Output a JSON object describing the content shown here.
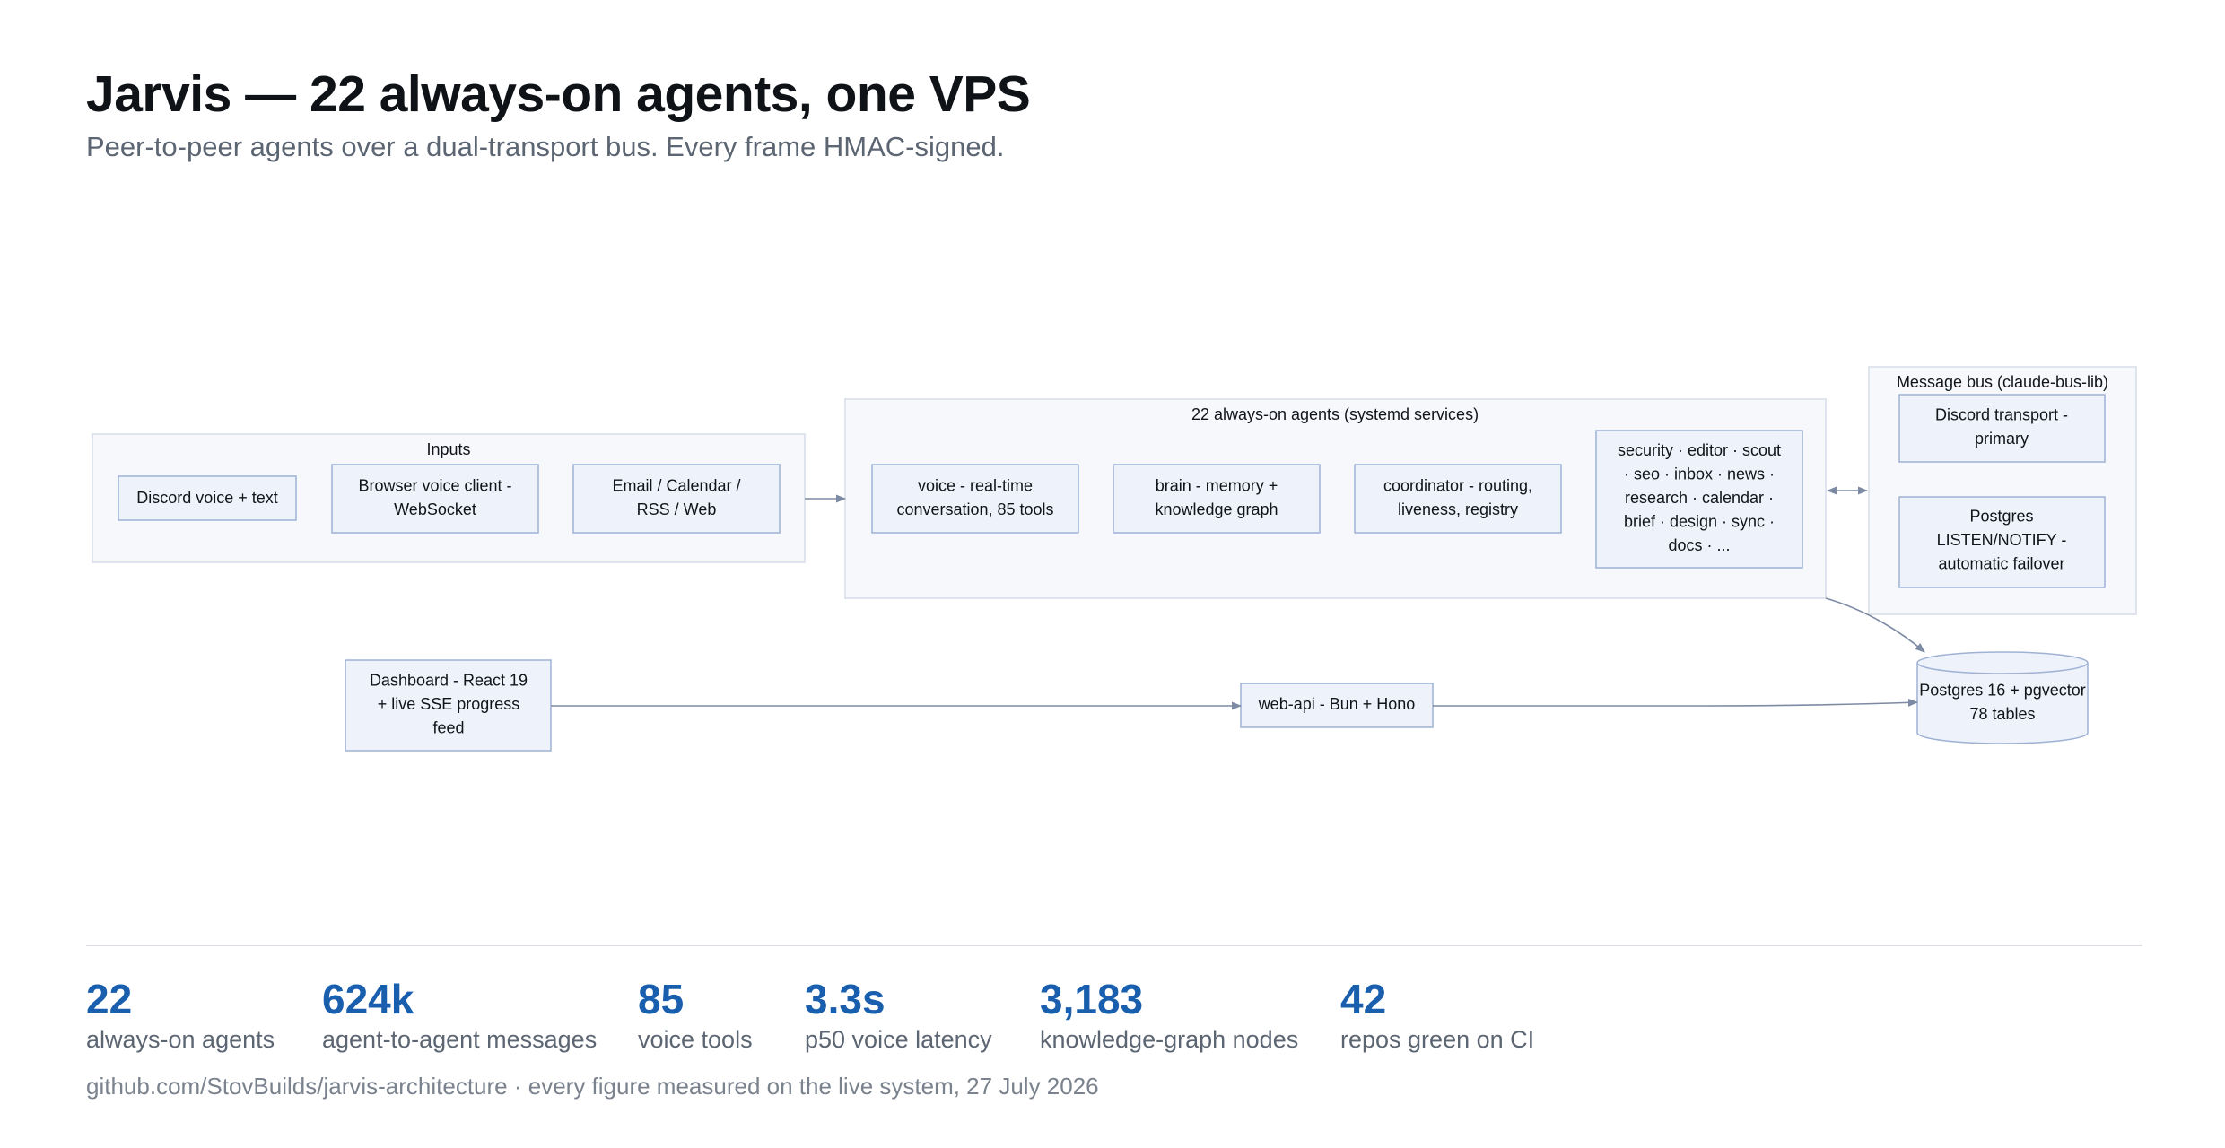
{
  "header": {
    "title": "Jarvis — 22 always-on agents, one VPS",
    "subtitle": "Peer-to-peer agents over a dual-transport bus. Every frame HMAC-signed."
  },
  "diagram": {
    "groups": {
      "inputs": "Inputs",
      "agents": "22 always-on agents (systemd services)",
      "bus": "Message bus (claude-bus-lib)"
    },
    "nodes": {
      "discord_input": [
        "Discord voice + text"
      ],
      "browser_voice": [
        "Browser voice client -",
        "WebSocket"
      ],
      "email_calendar": [
        "Email / Calendar /",
        "RSS / Web"
      ],
      "voice_agent": [
        "voice - real-time",
        "conversation, 85 tools"
      ],
      "brain_agent": [
        "brain - memory +",
        "knowledge graph"
      ],
      "coordinator_agent": [
        "coordinator - routing,",
        "liveness, registry"
      ],
      "other_agents": [
        "security · editor · scout",
        "· seo · inbox · news ·",
        "research · calendar ·",
        "brief · design · sync ·",
        "docs · ..."
      ],
      "discord_transport": [
        "Discord transport -",
        "primary"
      ],
      "postgres_notify": [
        "Postgres",
        "LISTEN/NOTIFY -",
        "automatic failover"
      ],
      "dashboard": [
        "Dashboard - React 19",
        "+ live SSE progress",
        "feed"
      ],
      "web_api": [
        "web-api - Bun + Hono"
      ],
      "postgres_db": [
        "Postgres 16 + pgvector",
        "78 tables"
      ]
    }
  },
  "stats": [
    {
      "value": "22",
      "label": "always-on agents"
    },
    {
      "value": "624k",
      "label": "agent-to-agent messages"
    },
    {
      "value": "85",
      "label": "voice tools"
    },
    {
      "value": "3.3s",
      "label": "p50 voice latency"
    },
    {
      "value": "3,183",
      "label": "knowledge-graph nodes"
    },
    {
      "value": "42",
      "label": "repos green on CI"
    }
  ],
  "footer": "github.com/StovBuilds/jarvis-architecture · every figure measured on the live system, 27 July 2026",
  "colors": {
    "accent": "#1a5fad",
    "node_fill": "#edf2fb",
    "node_stroke": "#9fb2d4",
    "group_fill": "#f6f8fc",
    "edge": "#7d8aa3"
  }
}
